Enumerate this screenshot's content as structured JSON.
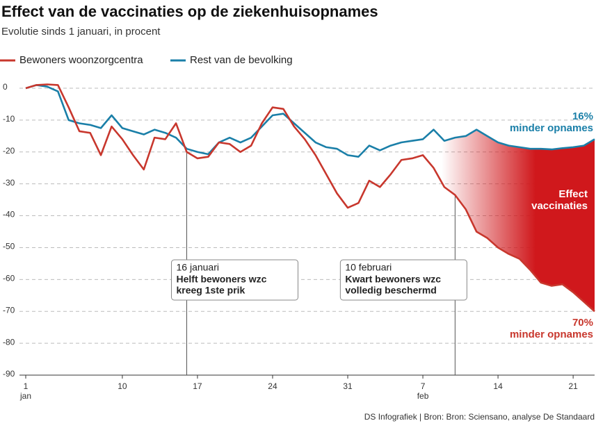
{
  "chart_data": {
    "type": "line",
    "title": "Effect van de vaccinaties op de ziekenhuisopnames",
    "subtitle": "Evolutie sinds 1 januari, in procent",
    "x": [
      1,
      2,
      3,
      4,
      5,
      6,
      7,
      8,
      9,
      10,
      11,
      12,
      13,
      14,
      15,
      16,
      17,
      18,
      19,
      20,
      21,
      22,
      23,
      24,
      25,
      26,
      27,
      28,
      29,
      30,
      31,
      32,
      33,
      34,
      35,
      36,
      37,
      38,
      39,
      40,
      41,
      42,
      43,
      44,
      45,
      46,
      47,
      48,
      49,
      50,
      51,
      52,
      53,
      54
    ],
    "series": [
      {
        "name": "Bewoners woonzorgcentra",
        "color": "#c8372d",
        "values": [
          0,
          1,
          1.2,
          1,
          -6,
          -13.5,
          -14,
          -21,
          -12,
          -16,
          -21,
          -25.5,
          -15.5,
          -16,
          -11,
          -20,
          -22,
          -21.5,
          -17,
          -17.5,
          -20,
          -18,
          -11,
          -6,
          -6.5,
          -12,
          -16,
          -21,
          -27,
          -33,
          -37.5,
          -36,
          -29,
          -31,
          -27,
          -22.5,
          -22,
          -21,
          -25,
          -31,
          -33.5,
          -38,
          -45,
          -47,
          -50,
          -52,
          -53.5,
          -57,
          -61,
          -62,
          -61.5,
          -64,
          -67,
          -70
        ]
      },
      {
        "name": "Rest van de bevolking",
        "color": "#1a7fa8",
        "values": [
          0,
          1,
          0.5,
          -1,
          -10,
          -11,
          -11.5,
          -12.5,
          -8.5,
          -12.5,
          -13.5,
          -14.5,
          -13,
          -14,
          -15.5,
          -19,
          -20,
          -20.7,
          -17,
          -15.5,
          -17,
          -15.5,
          -12,
          -8.5,
          -8,
          -11,
          -14,
          -17,
          -18.5,
          -19,
          -21,
          -21.5,
          -18,
          -19.5,
          -18,
          -17,
          -16.5,
          -16,
          -13,
          -16.5,
          -15.5,
          -15,
          -13,
          -15,
          -17,
          -18,
          -18.5,
          -19,
          -19,
          -19.2,
          -18.8,
          -18.5,
          -18,
          -16
        ]
      }
    ],
    "xlim": [
      1,
      54
    ],
    "xticks": [
      1,
      10,
      17,
      24,
      31,
      {
        "value": 38,
        "label": "7"
      },
      {
        "value": 45,
        "label": "14"
      },
      {
        "value": 52,
        "label": "21"
      }
    ],
    "month_labels": [
      {
        "x": 1,
        "label": "jan"
      },
      {
        "x": 38,
        "label": "feb"
      }
    ],
    "ylim": [
      -90,
      0
    ],
    "yticks": [
      0,
      -10,
      -20,
      -30,
      -40,
      -50,
      -60,
      -70,
      -80,
      -90
    ],
    "grid": true,
    "legend": "top-left",
    "fill_color": "#d0181c",
    "annotations": [
      {
        "x": 16,
        "date": "16 januari",
        "lines": [
          "Helft bewoners wzc",
          "kreeg 1ste prik"
        ]
      },
      {
        "x": 41,
        "date": "10 februari",
        "lines": [
          "Kwart bewoners wzc",
          "volledig beschermd"
        ]
      }
    ],
    "end_labels": {
      "top": [
        "16%",
        "minder opnames"
      ],
      "middle": [
        "Effect",
        "vaccinaties"
      ],
      "bottom": [
        "70%",
        "minder opnames"
      ]
    },
    "source": "DS Infografiek | Bron: Bron: Sciensano, analyse De Standaard"
  }
}
